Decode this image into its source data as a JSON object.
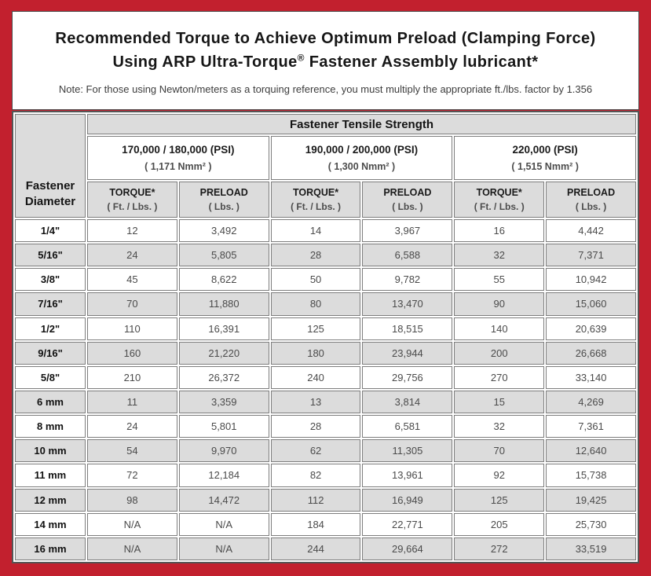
{
  "colors": {
    "frame_red": "#C2202E",
    "stripe_gray": "#DCDCDC",
    "cell_border_gray": "#7D7D7D",
    "table_border_dark": "#555555"
  },
  "header": {
    "title_line1": "Recommended Torque to Achieve Optimum Preload (Clamping Force)",
    "title_line2": {
      "pre": "Using ARP Ultra-Torque",
      "sup": "®",
      "post": " Fastener Assembly lubricant*"
    },
    "note": "Note: For those using Newton/meters as a torquing reference, you must multiply the appropriate ft./lbs. factor by 1.356"
  },
  "table": {
    "corner_header": {
      "line1": "Fastener",
      "line2": "Diameter"
    },
    "tensile_strength_header": "Fastener Tensile Strength",
    "groups": [
      {
        "psi": "170,000 / 180,000 (PSI)",
        "nmm": "( 1,171 Nmm² )"
      },
      {
        "psi": "190,000 / 200,000 (PSI)",
        "nmm": "( 1,300 Nmm² )"
      },
      {
        "psi": "220,000 (PSI)",
        "nmm": "( 1,515 Nmm² )"
      }
    ],
    "subheaders": {
      "torque_label": "TORQUE*",
      "torque_unit": "( Ft. / Lbs. )",
      "preload_label": "PRELOAD",
      "preload_unit": "( Lbs. )"
    },
    "rows": [
      {
        "diameter": "1/4\"",
        "values": [
          "12",
          "3,492",
          "14",
          "3,967",
          "16",
          "4,442"
        ]
      },
      {
        "diameter": "5/16\"",
        "values": [
          "24",
          "5,805",
          "28",
          "6,588",
          "32",
          "7,371"
        ]
      },
      {
        "diameter": "3/8\"",
        "values": [
          "45",
          "8,622",
          "50",
          "9,782",
          "55",
          "10,942"
        ]
      },
      {
        "diameter": "7/16\"",
        "values": [
          "70",
          "11,880",
          "80",
          "13,470",
          "90",
          "15,060"
        ]
      },
      {
        "diameter": "1/2\"",
        "values": [
          "110",
          "16,391",
          "125",
          "18,515",
          "140",
          "20,639"
        ]
      },
      {
        "diameter": "9/16\"",
        "values": [
          "160",
          "21,220",
          "180",
          "23,944",
          "200",
          "26,668"
        ]
      },
      {
        "diameter": "5/8\"",
        "values": [
          "210",
          "26,372",
          "240",
          "29,756",
          "270",
          "33,140"
        ]
      },
      {
        "diameter": "6 mm",
        "values": [
          "11",
          "3,359",
          "13",
          "3,814",
          "15",
          "4,269"
        ]
      },
      {
        "diameter": "8 mm",
        "values": [
          "24",
          "5,801",
          "28",
          "6,581",
          "32",
          "7,361"
        ]
      },
      {
        "diameter": "10 mm",
        "values": [
          "54",
          "9,970",
          "62",
          "11,305",
          "70",
          "12,640"
        ]
      },
      {
        "diameter": "11 mm",
        "values": [
          "72",
          "12,184",
          "82",
          "13,961",
          "92",
          "15,738"
        ]
      },
      {
        "diameter": "12 mm",
        "values": [
          "98",
          "14,472",
          "112",
          "16,949",
          "125",
          "19,425"
        ]
      },
      {
        "diameter": "14 mm",
        "values": [
          "N/A",
          "N/A",
          "184",
          "22,771",
          "205",
          "25,730"
        ]
      },
      {
        "diameter": "16 mm",
        "values": [
          "N/A",
          "N/A",
          "244",
          "29,664",
          "272",
          "33,519"
        ]
      }
    ]
  }
}
